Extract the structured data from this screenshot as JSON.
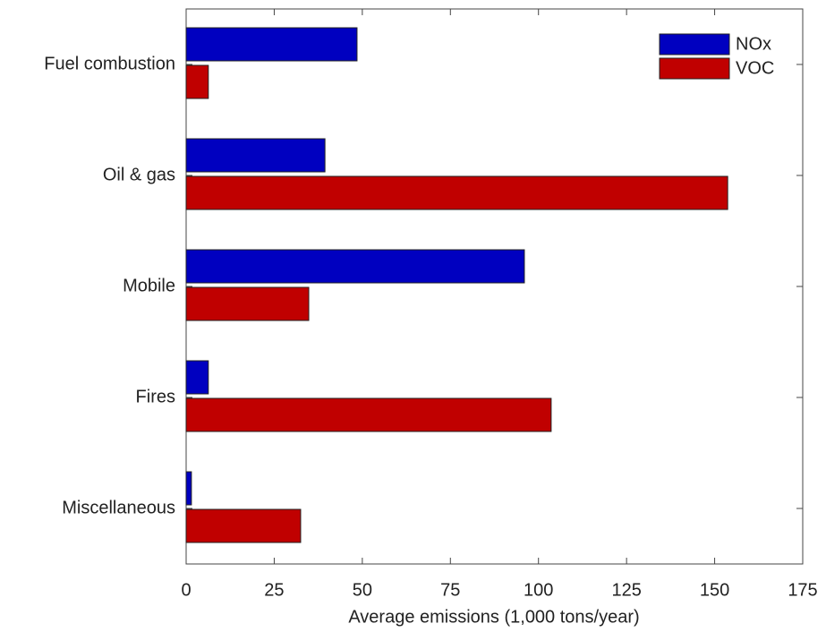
{
  "chart_data": {
    "type": "bar",
    "orientation": "horizontal",
    "xlabel": "Average emissions (1,000 tons/year)",
    "categories": [
      "Fuel combustion",
      "Oil & gas",
      "Mobile",
      "Fires",
      "Miscellaneous"
    ],
    "series": [
      {
        "name": "NOx",
        "color": "#0000c0",
        "values": [
          48.5,
          39.4,
          96,
          6.3,
          1.5
        ]
      },
      {
        "name": "VOC",
        "color": "#c00000",
        "values": [
          6.3,
          153.7,
          34.8,
          103.6,
          32.5
        ]
      }
    ],
    "xlim": [
      0,
      175
    ],
    "xticks": [
      0,
      25,
      50,
      75,
      100,
      125,
      150,
      175
    ],
    "legend": "upper right"
  }
}
